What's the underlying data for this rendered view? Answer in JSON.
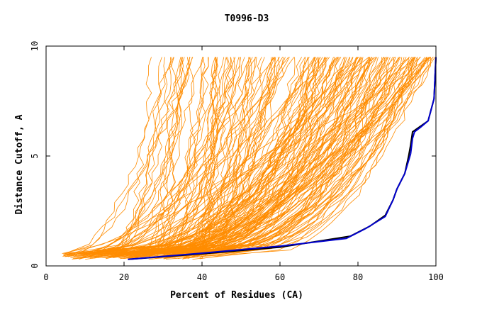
{
  "chart_data": {
    "type": "line",
    "title": "T0996-D3",
    "xlabel": "Percent of Residues (CA)",
    "ylabel": "Distance Cutoff, A",
    "xlim": [
      0,
      100
    ],
    "ylim": [
      0,
      10
    ],
    "x_ticks": [
      "0",
      "20",
      "40",
      "60",
      "80",
      "100"
    ],
    "y_ticks": [
      "0",
      "5",
      "10"
    ],
    "grid": false,
    "legend": "none",
    "colors": {
      "background_curves": "#ff8c00",
      "highlight_black": "#000000",
      "highlight_blue": "#0000cc"
    },
    "series": [
      {
        "points": [
          [
            21,
            0.3
          ],
          [
            40,
            0.55
          ],
          [
            60,
            0.85
          ],
          [
            78,
            1.35
          ],
          [
            83,
            1.8
          ],
          [
            87,
            2.3
          ],
          [
            89,
            3.0
          ],
          [
            90,
            3.5
          ],
          [
            92,
            4.2
          ],
          [
            93,
            5.0
          ],
          [
            93.5,
            5.5
          ],
          [
            94,
            6.1
          ],
          [
            96,
            6.35
          ],
          [
            98,
            6.6
          ],
          [
            99.5,
            7.6
          ],
          [
            100,
            9.5
          ]
        ]
      },
      {
        "points": [
          [
            21,
            0.3
          ],
          [
            40,
            0.58
          ],
          [
            60,
            0.9
          ],
          [
            77,
            1.25
          ],
          [
            82,
            1.7
          ],
          [
            87,
            2.25
          ],
          [
            89,
            3.0
          ],
          [
            90,
            3.5
          ],
          [
            92,
            4.2
          ],
          [
            93.5,
            5.1
          ],
          [
            94,
            5.8
          ],
          [
            94.5,
            6.1
          ],
          [
            96,
            6.3
          ],
          [
            98,
            6.6
          ],
          [
            99.5,
            7.6
          ],
          [
            100,
            9.5
          ]
        ]
      }
    ],
    "background_bundle": {
      "count": 180,
      "start_x_range": [
        4,
        40
      ],
      "start_y_range": [
        0.3,
        0.6
      ],
      "end_x_range": [
        15,
        100
      ],
      "max_y": 9.5
    }
  }
}
